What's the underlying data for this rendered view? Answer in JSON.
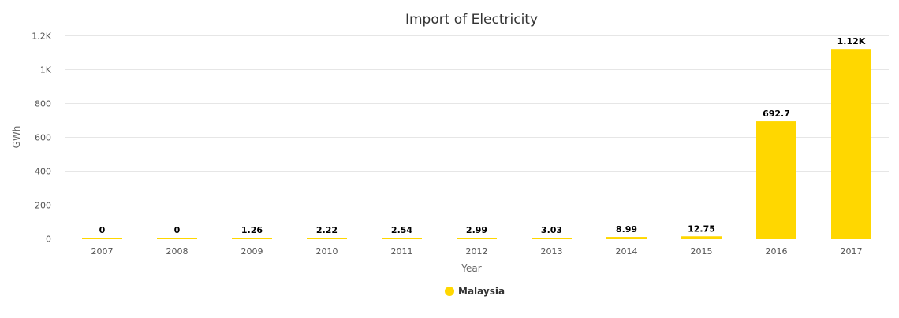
{
  "chart_data": {
    "type": "bar",
    "title": "Import of Electricity",
    "xlabel": "Year",
    "ylabel": "GWh",
    "categories": [
      "2007",
      "2008",
      "2009",
      "2010",
      "2011",
      "2012",
      "2013",
      "2014",
      "2015",
      "2016",
      "2017"
    ],
    "series": [
      {
        "name": "Malaysia",
        "color": "#FFD700",
        "values": [
          0,
          0,
          1.26,
          2.22,
          2.54,
          2.99,
          3.03,
          8.99,
          12.75,
          692.7,
          1120
        ],
        "labels": [
          "0",
          "0",
          "1.26",
          "2.22",
          "2.54",
          "2.99",
          "3.03",
          "8.99",
          "12.75",
          "692.7",
          "1.12K"
        ]
      }
    ],
    "ylim": [
      0,
      1200
    ],
    "yticks": [
      0,
      200,
      400,
      600,
      800,
      1000,
      1200
    ],
    "ytick_labels": [
      "0",
      "200",
      "400",
      "600",
      "800",
      "1K",
      "1.2K"
    ],
    "grid": true,
    "legend_position": "bottom-center"
  }
}
